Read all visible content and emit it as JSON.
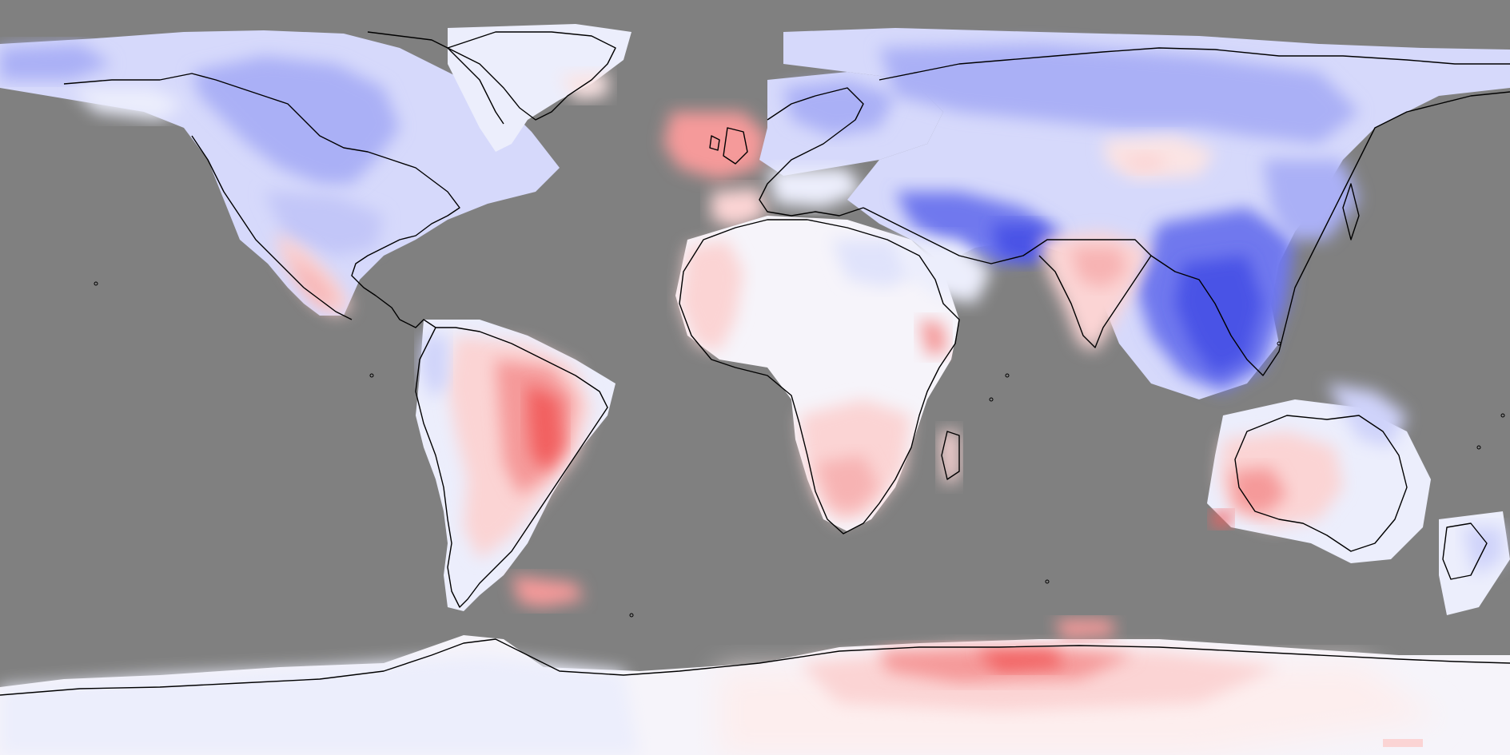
{
  "map": {
    "projection": "equirectangular",
    "ocean_color": "#808080",
    "coastline_color": "#000000",
    "colors": {
      "warm_strong": "#f26060",
      "warm_mid": "#f59a9a",
      "warm_light": "#fbd4d4",
      "warm_faint": "#fdeeee",
      "neutral": "#f6f4fa",
      "cool_faint": "#eceefc",
      "cool_light": "#cfd3fa",
      "cool_mid": "#a9aff6",
      "cool_strong": "#6f78ee",
      "cool_deep": "#4a52e6"
    },
    "regions": [
      {
        "id": "north-america",
        "anomaly": "cool"
      },
      {
        "id": "greenland",
        "anomaly": "cool-faint"
      },
      {
        "id": "mexico-west-coast",
        "anomaly": "warm"
      },
      {
        "id": "south-america",
        "anomaly": "warm"
      },
      {
        "id": "brazil",
        "anomaly": "warm-strong"
      },
      {
        "id": "europe-north",
        "anomaly": "cool"
      },
      {
        "id": "british-isles",
        "anomaly": "warm"
      },
      {
        "id": "africa",
        "anomaly": "neutral"
      },
      {
        "id": "southern-africa",
        "anomaly": "warm"
      },
      {
        "id": "arabia",
        "anomaly": "cool-faint"
      },
      {
        "id": "asia",
        "anomaly": "cool"
      },
      {
        "id": "himalaya-southeast-asia",
        "anomaly": "cool-deep"
      },
      {
        "id": "india",
        "anomaly": "warm"
      },
      {
        "id": "mongolia",
        "anomaly": "warm-faint"
      },
      {
        "id": "australia-west",
        "anomaly": "warm"
      },
      {
        "id": "australia-east",
        "anomaly": "cool-faint"
      },
      {
        "id": "new-zealand",
        "anomaly": "cool-faint"
      },
      {
        "id": "antarctica-east",
        "anomaly": "warm"
      },
      {
        "id": "antarctica-west",
        "anomaly": "cool-faint"
      }
    ]
  }
}
